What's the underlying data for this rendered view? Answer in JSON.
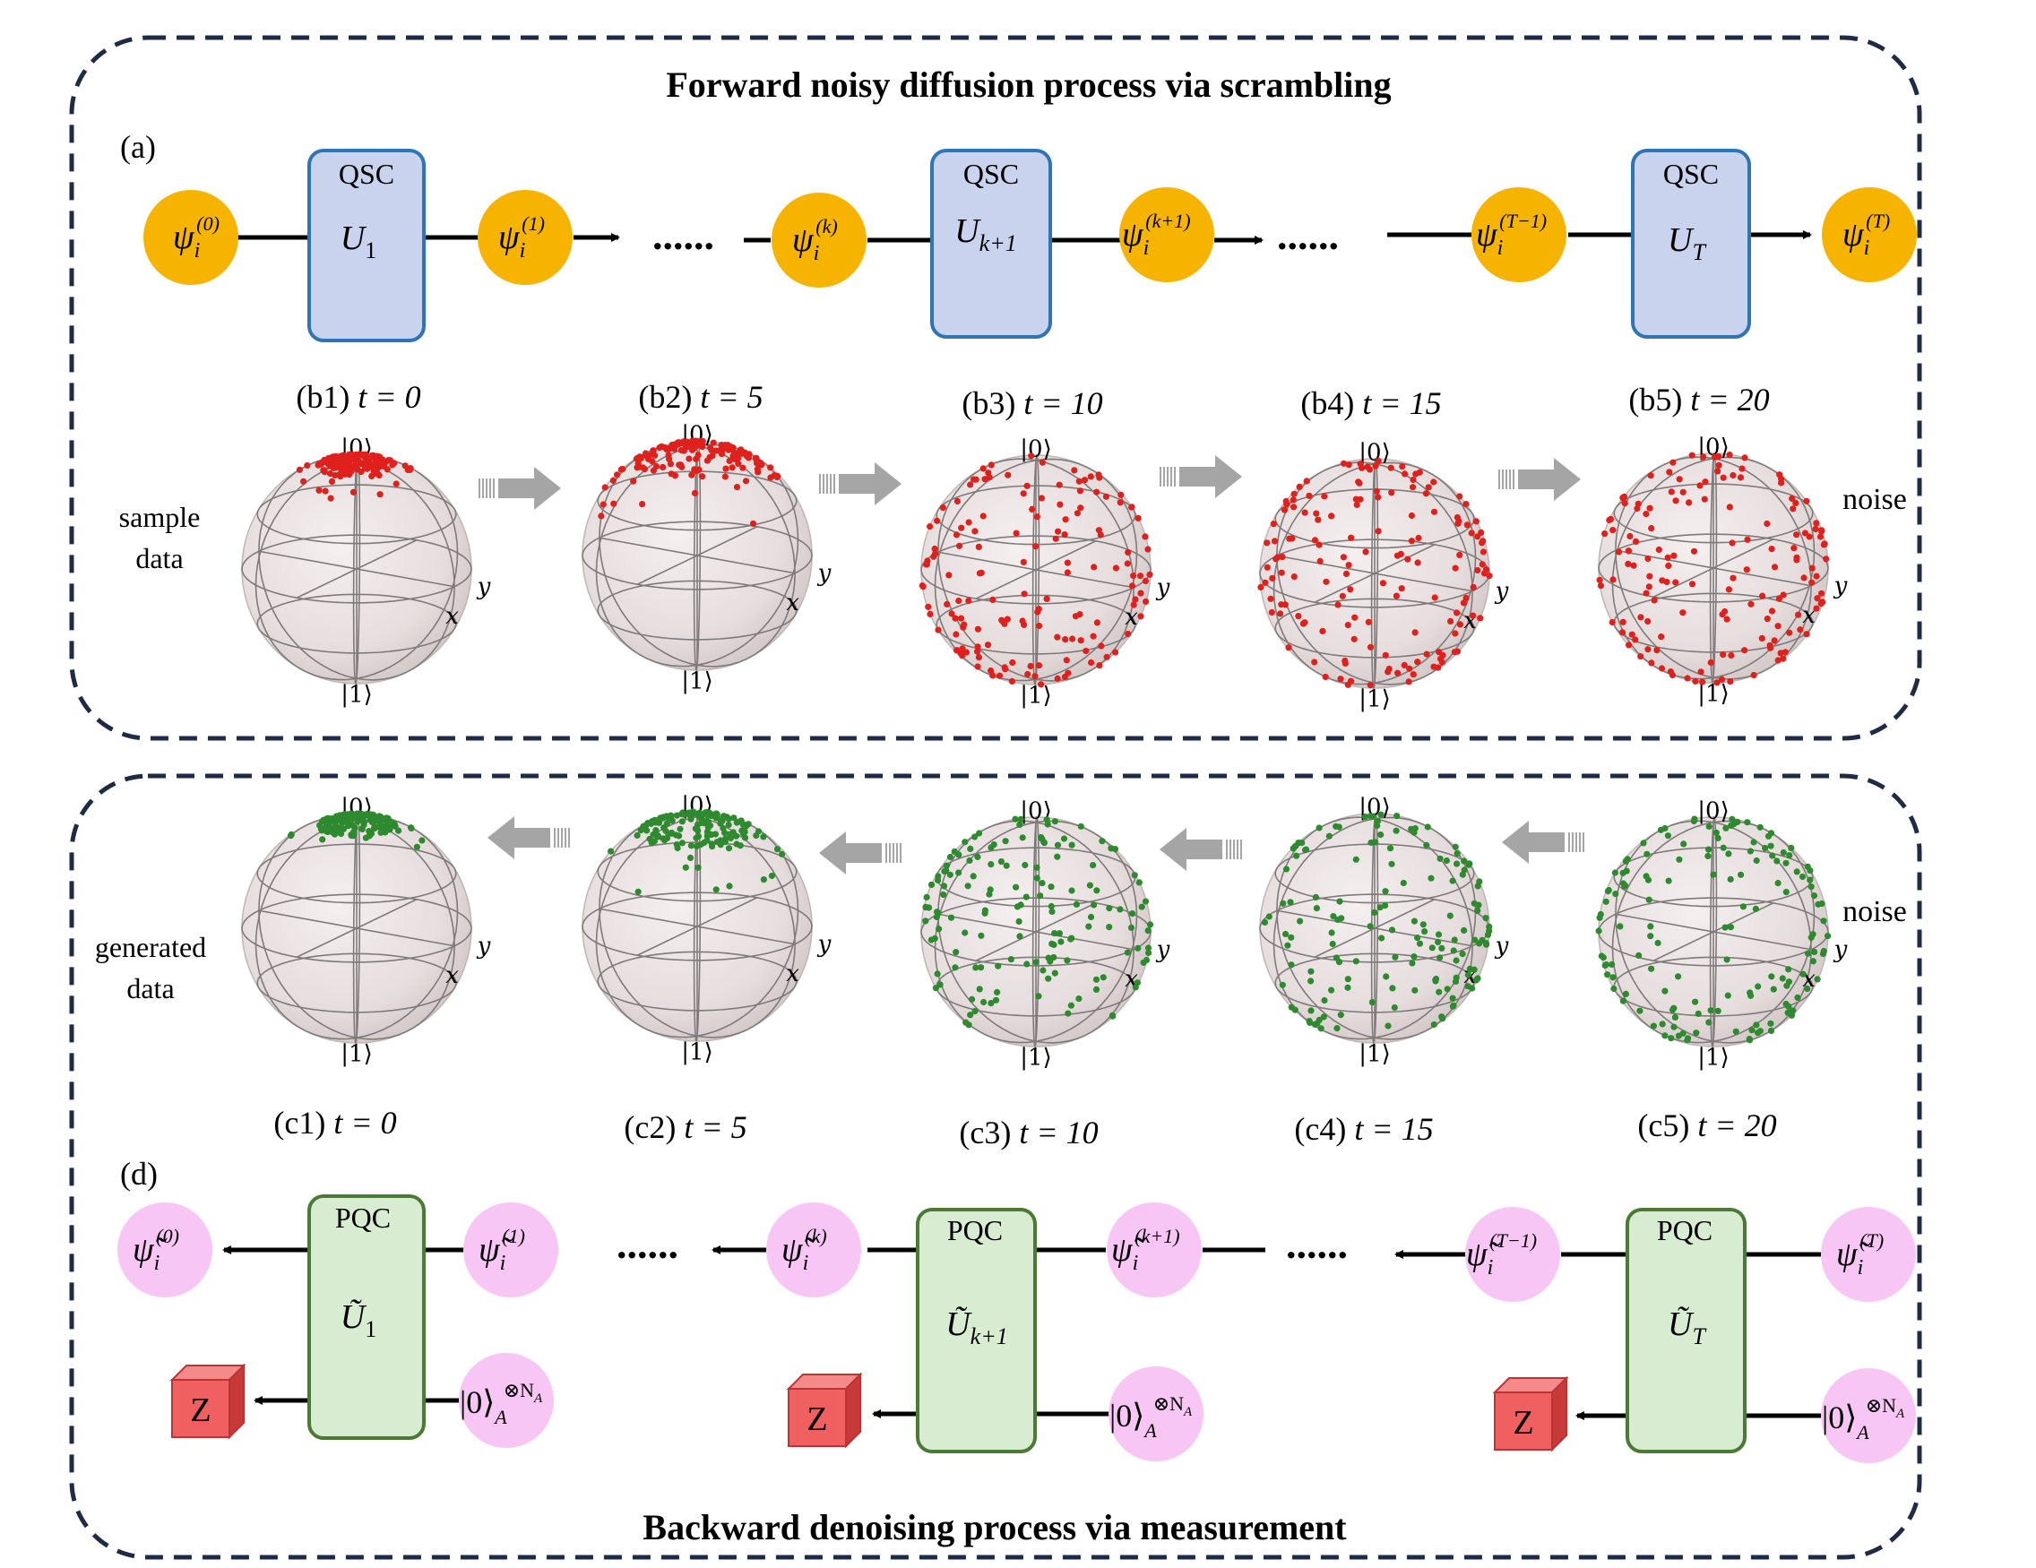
{
  "forward": {
    "title": "Forward noisy diffusion process via scrambling",
    "panel_a": "(a)",
    "gate_label": "QSC",
    "gates": [
      {
        "letter": "U",
        "sub": "1"
      },
      {
        "letter": "U",
        "sub": "k+1"
      },
      {
        "letter": "U",
        "sub": "T"
      }
    ],
    "states": [
      {
        "sym": "ψ",
        "sub": "i",
        "sup": "(0)"
      },
      {
        "sym": "ψ",
        "sub": "i",
        "sup": "(1)"
      },
      {
        "sym": "ψ",
        "sub": "i",
        "sup": "(k)"
      },
      {
        "sym": "ψ",
        "sub": "i",
        "sup": "(k+1)"
      },
      {
        "sym": "ψ",
        "sub": "i",
        "sup": "(T−1)"
      },
      {
        "sym": "ψ",
        "sub": "i",
        "sup": "(T)"
      }
    ],
    "dots": "......"
  },
  "spheres_b": {
    "labels": [
      {
        "panel": "(b1)",
        "t": "t = 0"
      },
      {
        "panel": "(b2)",
        "t": "t = 5"
      },
      {
        "panel": "(b3)",
        "t": "t = 10"
      },
      {
        "panel": "(b4)",
        "t": "t = 15"
      },
      {
        "panel": "(b5)",
        "t": "t = 20"
      }
    ],
    "left_label": [
      "sample",
      "data"
    ],
    "right_label": "noise",
    "point_color": "#e0201c",
    "spread": [
      0.12,
      0.35,
      1.0,
      1.0,
      1.0
    ]
  },
  "spheres_c": {
    "labels": [
      {
        "panel": "(c1)",
        "t": "t = 0"
      },
      {
        "panel": "(c2)",
        "t": "t = 5"
      },
      {
        "panel": "(c3)",
        "t": "t = 10"
      },
      {
        "panel": "(c4)",
        "t": "t = 15"
      },
      {
        "panel": "(c5)",
        "t": "t = 20"
      }
    ],
    "left_label": [
      "generated",
      "data"
    ],
    "right_label": "noise",
    "point_color": "#2e8a2e",
    "spread": [
      0.12,
      0.3,
      0.9,
      0.95,
      1.0
    ]
  },
  "sphere_axes": {
    "top": "|0⟩",
    "bottom": "|1⟩",
    "x": "x",
    "y": "y"
  },
  "backward": {
    "title": "Backward denoising process via measurement",
    "panel_d": "(d)",
    "gate_label": "PQC",
    "gates": [
      {
        "letter": "Ũ",
        "sub": "1"
      },
      {
        "letter": "Ũ",
        "sub": "k+1"
      },
      {
        "letter": "Ũ",
        "sub": "T"
      }
    ],
    "states": [
      {
        "sym": "ψ̃",
        "sub": "i",
        "sup": "(0)"
      },
      {
        "sym": "ψ̃",
        "sub": "i",
        "sup": "(1)"
      },
      {
        "sym": "ψ̃",
        "sub": "i",
        "sup": "(k)"
      },
      {
        "sym": "ψ̃",
        "sub": "i",
        "sup": "(k+1)"
      },
      {
        "sym": "ψ̃",
        "sub": "i",
        "sup": "(T−1)"
      },
      {
        "sym": "ψ̃",
        "sub": "i",
        "sup": "(T)"
      }
    ],
    "ancilla": {
      "ket": "|0⟩",
      "sub": "A",
      "sup": "⊗N",
      "supsub": "A"
    },
    "measure": "Z",
    "dots": "......"
  },
  "colors": {
    "frame": "#1f2b45",
    "psi_fill": "#f6b400",
    "psi_tilde_fill": "#f8c6f5",
    "qsc_fill": "#c9d3ee",
    "qsc_stroke": "#2f74b5",
    "pqc_fill": "#d8ecd2",
    "pqc_stroke": "#4b7a34",
    "z_front": "#f06060",
    "z_top": "#f58a8a",
    "z_side": "#c83a3a",
    "arrow_grey": "#a5a5a5"
  }
}
